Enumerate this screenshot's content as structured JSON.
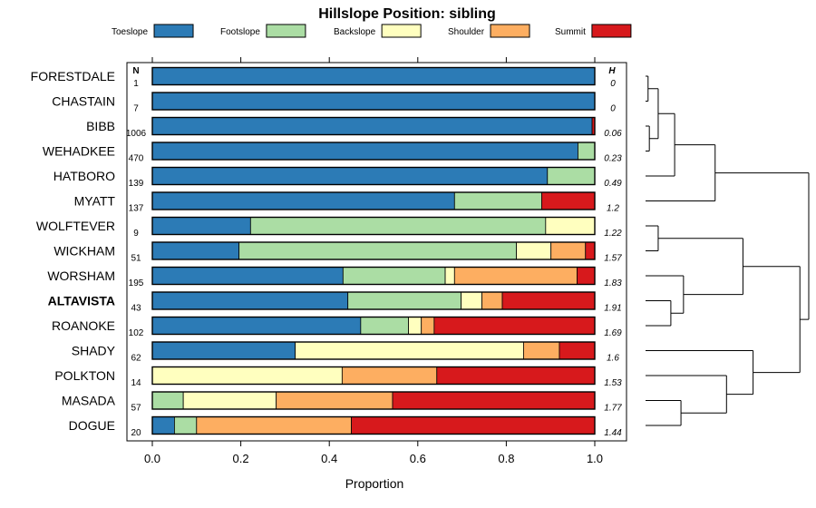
{
  "chart_data": {
    "type": "bar",
    "orientation": "horizontal",
    "stacked": true,
    "title": "Hillslope Position: sibling",
    "xlabel": "Proportion",
    "ylabel": "",
    "xlim": [
      0,
      1
    ],
    "x_ticks": [
      "0.0",
      "0.2",
      "0.4",
      "0.6",
      "0.8",
      "1.0"
    ],
    "legend": {
      "position": "top",
      "entries": [
        {
          "name": "Toeslope",
          "color": "#2C7BB6"
        },
        {
          "name": "Footslope",
          "color": "#ABDDA4"
        },
        {
          "name": "Backslope",
          "color": "#FFFFBF"
        },
        {
          "name": "Shoulder",
          "color": "#FDAE61"
        },
        {
          "name": "Summit",
          "color": "#D7191C"
        }
      ]
    },
    "n_header": "N",
    "h_header": "H",
    "categories": [
      "FORESTDALE",
      "CHASTAIN",
      "BIBB",
      "WEHADKEE",
      "HATBORO",
      "MYATT",
      "WOLFTEVER",
      "WICKHAM",
      "WORSHAM",
      "ALTAVISTA",
      "ROANOKE",
      "SHADY",
      "POLKTON",
      "MASADA",
      "DOGUE"
    ],
    "highlight": "ALTAVISTA",
    "n": [
      "1",
      "7",
      "1006",
      "470",
      "139",
      "137",
      "9",
      "51",
      "195",
      "43",
      "102",
      "62",
      "14",
      "57",
      "20"
    ],
    "h": [
      "0",
      "0",
      "0.06",
      "0.23",
      "0.49",
      "1.2",
      "1.22",
      "1.57",
      "1.83",
      "1.91",
      "1.69",
      "1.6",
      "1.53",
      "1.77",
      "1.44"
    ],
    "series": [
      {
        "name": "Toeslope",
        "values": [
          1.0,
          1.0,
          0.994,
          0.962,
          0.893,
          0.683,
          0.222,
          0.196,
          0.431,
          0.442,
          0.471,
          0.323,
          0.0,
          0.0,
          0.05
        ]
      },
      {
        "name": "Footslope",
        "values": [
          0.0,
          0.0,
          0.0,
          0.038,
          0.107,
          0.197,
          0.667,
          0.627,
          0.231,
          0.256,
          0.108,
          0.0,
          0.0,
          0.07,
          0.05
        ]
      },
      {
        "name": "Backslope",
        "values": [
          0.0,
          0.0,
          0.0,
          0.0,
          0.0,
          0.0,
          0.111,
          0.078,
          0.021,
          0.047,
          0.029,
          0.516,
          0.429,
          0.21,
          0.0
        ]
      },
      {
        "name": "Shoulder",
        "values": [
          0.0,
          0.0,
          0.0,
          0.0,
          0.0,
          0.0,
          0.0,
          0.078,
          0.277,
          0.046,
          0.029,
          0.081,
          0.214,
          0.263,
          0.35
        ]
      },
      {
        "name": "Summit",
        "values": [
          0.0,
          0.0,
          0.006,
          0.0,
          0.0,
          0.12,
          0.0,
          0.021,
          0.04,
          0.209,
          0.363,
          0.08,
          0.357,
          0.457,
          0.55
        ]
      }
    ],
    "dendrogram": {
      "label": "hierarchical clustering of row profiles",
      "merges": [
        {
          "a": "FORESTDALE",
          "b": "CHASTAIN",
          "height": 0.02
        },
        {
          "a": "BIBB",
          "b": "WEHADKEE",
          "height": 0.03
        },
        {
          "a": "FORESTDALE+CHASTAIN",
          "b": "BIBB+WEHADKEE",
          "height": 0.1
        },
        {
          "a": "FORESTDALE..WEHADKEE",
          "b": "HATBORO",
          "height": 0.23
        },
        {
          "a": "FORESTDALE..HATBORO",
          "b": "MYATT",
          "height": 0.55
        },
        {
          "a": "WOLFTEVER",
          "b": "WICKHAM",
          "height": 0.1
        },
        {
          "a": "ALTAVISTA",
          "b": "ROANOKE",
          "height": 0.2
        },
        {
          "a": "WORSHAM",
          "b": "ALTAVISTA+ROANOKE",
          "height": 0.3
        },
        {
          "a": "WOLFTEVER+WICKHAM",
          "b": "WORSHAM..ROANOKE",
          "height": 0.77
        },
        {
          "a": "MASADA",
          "b": "DOGUE",
          "height": 0.28
        },
        {
          "a": "POLKTON",
          "b": "MASADA+DOGUE",
          "height": 0.64
        },
        {
          "a": "SHADY",
          "b": "POLKTON..DOGUE",
          "height": 0.85
        },
        {
          "a": "WOLFTEVER..ROANOKE",
          "b": "SHADY..DOGUE",
          "height": 1.22
        },
        {
          "a": "FORESTDALE..MYATT",
          "b": "WOLFTEVER..DOGUE",
          "height": 1.29
        }
      ]
    }
  }
}
